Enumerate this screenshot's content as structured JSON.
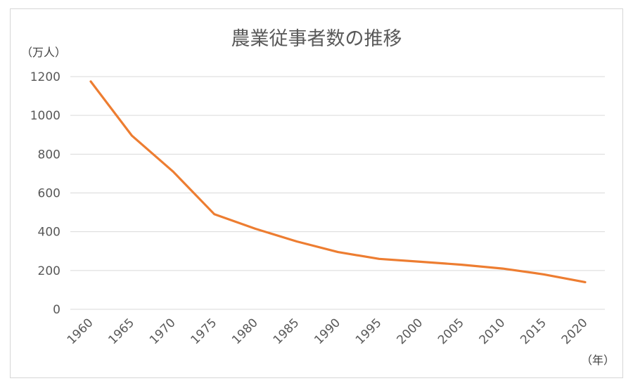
{
  "chart_data": {
    "type": "line",
    "title": "農業従事者数の推移",
    "y_unit_label": "（万人）",
    "x_unit_label": "（年）",
    "ylim": [
      0,
      1200
    ],
    "y_ticks": [
      0,
      200,
      400,
      600,
      800,
      1000,
      1200
    ],
    "categories": [
      "1960",
      "1965",
      "1970",
      "1975",
      "1980",
      "1985",
      "1990",
      "1995",
      "2000",
      "2005",
      "2010",
      "2015",
      "2020"
    ],
    "series": [
      {
        "values": [
          1175,
          895,
          710,
          490,
          415,
          350,
          295,
          260,
          245,
          230,
          210,
          180,
          140
        ],
        "color": "#ED7D31"
      }
    ],
    "grid": true,
    "legend": "none"
  }
}
